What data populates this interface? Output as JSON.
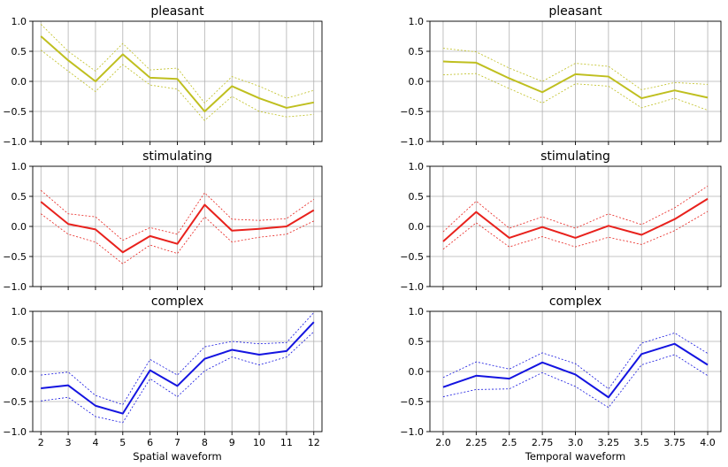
{
  "chart_data": [
    {
      "type": "line",
      "title": "pleasant",
      "xlabel": "",
      "ylabel": "",
      "x": [
        2,
        3,
        4,
        5,
        6,
        7,
        8,
        9,
        10,
        11,
        12
      ],
      "xticklabels": [
        "2",
        "3",
        "4",
        "5",
        "6",
        "7",
        "8",
        "9",
        "10",
        "11",
        "12"
      ],
      "xlim": [
        1.7,
        12.3
      ],
      "ylim": [
        -1.0,
        1.0
      ],
      "yticks": [
        "1.0",
        "0.5",
        "0.0",
        "−0.5",
        "−1.0"
      ],
      "grid": true,
      "color": "#bfbf1f",
      "series": [
        {
          "role": "mean",
          "values": [
            0.75,
            0.35,
            0.0,
            0.45,
            0.06,
            0.04,
            -0.5,
            -0.08,
            -0.28,
            -0.44,
            -0.35
          ]
        },
        {
          "role": "upper",
          "values": [
            0.95,
            0.5,
            0.17,
            0.63,
            0.19,
            0.22,
            -0.36,
            0.08,
            -0.08,
            -0.28,
            -0.15
          ]
        },
        {
          "role": "lower",
          "values": [
            0.52,
            0.17,
            -0.17,
            0.28,
            -0.06,
            -0.13,
            -0.65,
            -0.25,
            -0.5,
            -0.59,
            -0.55
          ]
        }
      ],
      "show_xticklabels": false
    },
    {
      "type": "line",
      "title": "pleasant",
      "xlabel": "",
      "ylabel": "",
      "x": [
        2.0,
        2.25,
        2.5,
        2.75,
        3.0,
        3.25,
        3.5,
        3.75,
        4.0
      ],
      "xticklabels": [
        "2.0",
        "2.25",
        "2.5",
        "2.75",
        "3.0",
        "3.25",
        "3.5",
        "3.75",
        "4.0"
      ],
      "xlim": [
        1.9,
        4.1
      ],
      "ylim": [
        -1.0,
        1.0
      ],
      "yticks": [
        "1.0",
        "0.5",
        "0.0",
        "−0.5",
        "−1.0"
      ],
      "grid": true,
      "color": "#bfbf1f",
      "series": [
        {
          "role": "mean",
          "values": [
            0.33,
            0.31,
            0.05,
            -0.18,
            0.12,
            0.08,
            -0.28,
            -0.15,
            -0.27
          ]
        },
        {
          "role": "upper",
          "values": [
            0.55,
            0.49,
            0.22,
            0.0,
            0.3,
            0.25,
            -0.14,
            -0.02,
            -0.05
          ]
        },
        {
          "role": "lower",
          "values": [
            0.11,
            0.13,
            -0.12,
            -0.36,
            -0.04,
            -0.08,
            -0.44,
            -0.28,
            -0.48
          ]
        }
      ],
      "show_xticklabels": false
    },
    {
      "type": "line",
      "title": "stimulating",
      "xlabel": "",
      "ylabel": "",
      "x": [
        2,
        3,
        4,
        5,
        6,
        7,
        8,
        9,
        10,
        11,
        12
      ],
      "xticklabels": [
        "2",
        "3",
        "4",
        "5",
        "6",
        "7",
        "8",
        "9",
        "10",
        "11",
        "12"
      ],
      "xlim": [
        1.7,
        12.3
      ],
      "ylim": [
        -1.0,
        1.0
      ],
      "yticks": [
        "1.0",
        "0.5",
        "0.0",
        "−0.5",
        "−1.0"
      ],
      "grid": true,
      "color": "#e8211c",
      "series": [
        {
          "role": "mean",
          "values": [
            0.41,
            0.04,
            -0.05,
            -0.43,
            -0.16,
            -0.29,
            0.36,
            -0.07,
            -0.04,
            0.0,
            0.27
          ]
        },
        {
          "role": "upper",
          "values": [
            0.6,
            0.21,
            0.16,
            -0.23,
            -0.02,
            -0.13,
            0.56,
            0.12,
            0.1,
            0.13,
            0.45
          ]
        },
        {
          "role": "lower",
          "values": [
            0.21,
            -0.13,
            -0.26,
            -0.62,
            -0.31,
            -0.45,
            0.16,
            -0.26,
            -0.18,
            -0.13,
            0.09
          ]
        }
      ],
      "show_xticklabels": false
    },
    {
      "type": "line",
      "title": "stimulating",
      "xlabel": "",
      "ylabel": "",
      "x": [
        2.0,
        2.25,
        2.5,
        2.75,
        3.0,
        3.25,
        3.5,
        3.75,
        4.0
      ],
      "xticklabels": [
        "2.0",
        "2.25",
        "2.5",
        "2.75",
        "3.0",
        "3.25",
        "3.5",
        "3.75",
        "4.0"
      ],
      "xlim": [
        1.9,
        4.1
      ],
      "ylim": [
        -1.0,
        1.0
      ],
      "yticks": [
        "1.0",
        "0.5",
        "0.0",
        "−0.5",
        "−1.0"
      ],
      "grid": true,
      "color": "#e8211c",
      "series": [
        {
          "role": "mean",
          "values": [
            -0.25,
            0.24,
            -0.19,
            -0.01,
            -0.19,
            0.01,
            -0.14,
            0.12,
            0.46
          ]
        },
        {
          "role": "upper",
          "values": [
            -0.09,
            0.42,
            -0.03,
            0.16,
            -0.03,
            0.21,
            0.03,
            0.31,
            0.67
          ]
        },
        {
          "role": "lower",
          "values": [
            -0.38,
            0.06,
            -0.34,
            -0.17,
            -0.34,
            -0.18,
            -0.3,
            -0.07,
            0.25
          ]
        }
      ],
      "show_xticklabels": false
    },
    {
      "type": "line",
      "title": "complex",
      "xlabel": "Spatial waveform",
      "ylabel": "",
      "x": [
        2,
        3,
        4,
        5,
        6,
        7,
        8,
        9,
        10,
        11,
        12
      ],
      "xticklabels": [
        "2",
        "3",
        "4",
        "5",
        "6",
        "7",
        "8",
        "9",
        "10",
        "11",
        "12"
      ],
      "xlim": [
        1.7,
        12.3
      ],
      "ylim": [
        -1.0,
        1.0
      ],
      "yticks": [
        "1.0",
        "0.5",
        "0.0",
        "−0.5",
        "−1.0"
      ],
      "grid": true,
      "color": "#1414e0",
      "series": [
        {
          "role": "mean",
          "values": [
            -0.28,
            -0.23,
            -0.57,
            -0.7,
            0.02,
            -0.24,
            0.21,
            0.36,
            0.28,
            0.34,
            0.82
          ]
        },
        {
          "role": "upper",
          "values": [
            -0.06,
            -0.01,
            -0.4,
            -0.55,
            0.2,
            -0.06,
            0.41,
            0.5,
            0.46,
            0.48,
            0.98
          ]
        },
        {
          "role": "lower",
          "values": [
            -0.49,
            -0.43,
            -0.75,
            -0.85,
            -0.12,
            -0.42,
            0.01,
            0.24,
            0.11,
            0.24,
            0.66
          ]
        }
      ],
      "show_xticklabels": true
    },
    {
      "type": "line",
      "title": "complex",
      "xlabel": "Temporal waveform",
      "ylabel": "",
      "x": [
        2.0,
        2.25,
        2.5,
        2.75,
        3.0,
        3.25,
        3.5,
        3.75,
        4.0
      ],
      "xticklabels": [
        "2.0",
        "2.25",
        "2.5",
        "2.75",
        "3.0",
        "3.25",
        "3.5",
        "3.75",
        "4.0"
      ],
      "xlim": [
        1.9,
        4.1
      ],
      "ylim": [
        -1.0,
        1.0
      ],
      "yticks": [
        "1.0",
        "0.5",
        "0.0",
        "−0.5",
        "−1.0"
      ],
      "grid": true,
      "color": "#1414e0",
      "series": [
        {
          "role": "mean",
          "values": [
            -0.26,
            -0.07,
            -0.12,
            0.15,
            -0.05,
            -0.43,
            0.29,
            0.46,
            0.11
          ]
        },
        {
          "role": "upper",
          "values": [
            -0.1,
            0.16,
            0.04,
            0.31,
            0.13,
            -0.29,
            0.47,
            0.64,
            0.3
          ]
        },
        {
          "role": "lower",
          "values": [
            -0.42,
            -0.3,
            -0.29,
            -0.02,
            -0.25,
            -0.6,
            0.11,
            0.28,
            -0.07
          ]
        }
      ],
      "show_xticklabels": true
    }
  ]
}
